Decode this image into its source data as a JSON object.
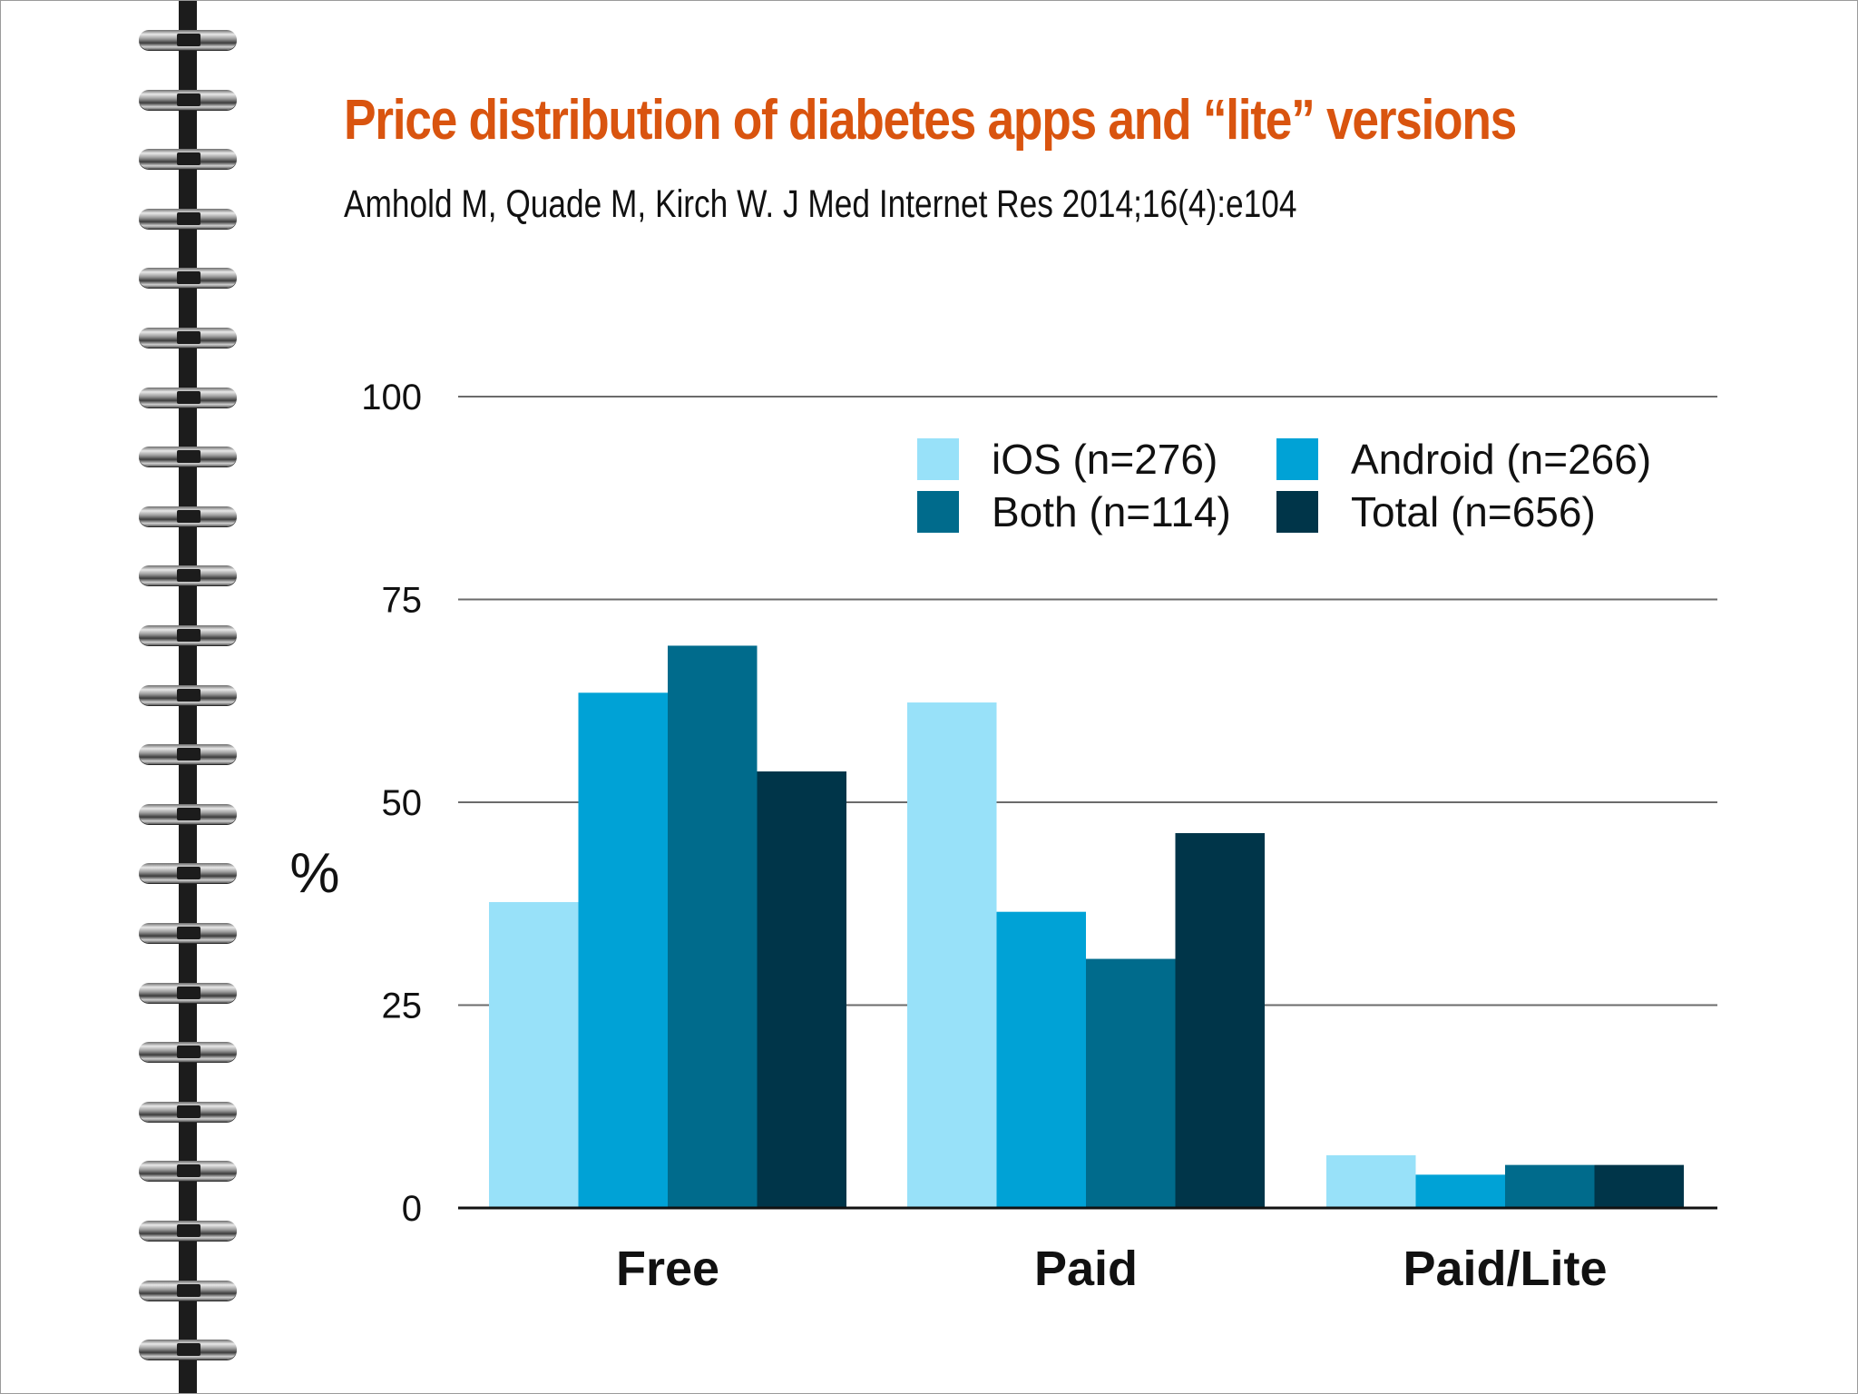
{
  "chart_data": {
    "type": "bar",
    "title": "Price distribution of diabetes apps and “lite” versions",
    "subtitle": "Amhold M, Quade M, Kirch W. J Med Internet Res 2014;16(4):e104",
    "ylabel": "%",
    "xlabel": "",
    "ylim": [
      0,
      100
    ],
    "yticks": [
      0,
      25,
      50,
      75,
      100
    ],
    "grid": true,
    "legend_position": "top-right",
    "categories": [
      "Free",
      "Paid",
      "Paid/Lite"
    ],
    "series": [
      {
        "name": "iOS (n=276)",
        "color": "#98e1f9",
        "values": [
          37.7,
          62.3,
          6.5
        ]
      },
      {
        "name": "Android (n=266)",
        "color": "#00a2d6",
        "values": [
          63.5,
          36.5,
          4.1
        ]
      },
      {
        "name": "Both (n=114)",
        "color": "#006b8c",
        "values": [
          69.3,
          30.7,
          5.3
        ]
      },
      {
        "name": "Total (n=656)",
        "color": "#003549",
        "values": [
          53.8,
          46.2,
          5.3
        ]
      }
    ]
  }
}
